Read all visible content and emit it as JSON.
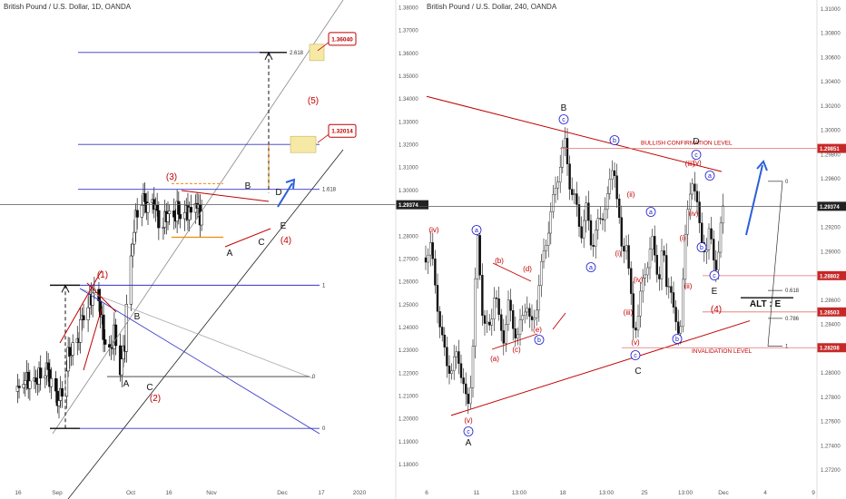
{
  "chart_data": [
    {
      "type": "candlestick",
      "title": "British Pound / U.S. Dollar, 1D, OANDA",
      "ylim": [
        1.175,
        1.385
      ],
      "y_ticks": [
        "1.38000",
        "1.37000",
        "1.36000",
        "1.35000",
        "1.34000",
        "1.33000",
        "1.32000",
        "1.31000",
        "1.30000",
        "1.28000",
        "1.27000",
        "1.26000",
        "1.25000",
        "1.24000",
        "1.23000",
        "1.22000",
        "1.21000",
        "1.20000",
        "1.19000",
        "1.18000"
      ],
      "x_ticks": [
        "16",
        "Sep",
        "Oct",
        "16",
        "Nov",
        "Dec",
        "17",
        "2020"
      ],
      "current_price": "1.29374",
      "price_callouts": [
        {
          "label": "1.36040",
          "value": 1.3604
        },
        {
          "label": "1.32014",
          "value": 1.32014
        }
      ],
      "fib_levels": [
        {
          "label": "2.618",
          "value": 1.3604
        },
        {
          "label": "1.618",
          "value": 1.3005
        },
        {
          "label": "1",
          "value": 1.2585
        },
        {
          "label": "0",
          "value": 1.2185
        },
        {
          "label": "0",
          "value": 1.1958
        }
      ],
      "wave_labels": [
        {
          "text": "(1)",
          "color": "red",
          "date": "Sep 23",
          "price": 1.263
        },
        {
          "text": "(2)",
          "color": "red",
          "date": "Oct 11",
          "price": 1.21
        },
        {
          "text": "(3)",
          "color": "red",
          "date": "Oct 21",
          "price": 1.306
        },
        {
          "text": "(4)",
          "color": "red",
          "date": "Dec 2",
          "price": 1.279
        },
        {
          "text": "(5)",
          "color": "red",
          "date": "Dec 8",
          "price": 1.341
        },
        {
          "text": "A",
          "color": "black",
          "date": "Oct 1",
          "price": 1.2165
        },
        {
          "text": "B",
          "color": "black",
          "date": "Oct 5",
          "price": 1.239
        },
        {
          "text": "C",
          "color": "black",
          "date": "Oct 9",
          "price": 1.21
        },
        {
          "text": "A",
          "color": "black",
          "date": "Nov 15",
          "price": 1.275
        },
        {
          "text": "B",
          "color": "black",
          "date": "Nov 24",
          "price": 1.302
        },
        {
          "text": "C",
          "color": "black",
          "date": "Nov 27",
          "price": 1.279
        },
        {
          "text": "D",
          "color": "black",
          "date": "Dec 2",
          "price": 1.3
        },
        {
          "text": "E",
          "color": "black",
          "date": "Nov 29",
          "price": 1.285
        }
      ],
      "candles": []
    },
    {
      "type": "candlestick",
      "title": "British Pound / U.S. Dollar, 240, OANDA",
      "ylim": [
        1.268,
        1.312
      ],
      "y_ticks": [
        "1.31000",
        "1.30800",
        "1.30600",
        "1.30400",
        "1.30200",
        "1.30000",
        "1.29800",
        "1.29600",
        "1.29200",
        "1.29000",
        "1.28600",
        "1.28400",
        "1.28000",
        "1.27800",
        "1.27600",
        "1.27400",
        "1.27200"
      ],
      "x_ticks": [
        "6",
        "11",
        "13:00",
        "18",
        "13:00",
        "25",
        "13:00",
        "Dec",
        "4",
        "9"
      ],
      "current_price": "1.29374",
      "price_callouts": [
        {
          "label": "1.29851",
          "value": 1.29851
        },
        {
          "label": "1.28802",
          "value": 1.28802
        },
        {
          "label": "1.28503",
          "value": 1.28503
        },
        {
          "label": "1.28208",
          "value": 1.28208
        }
      ],
      "levels": [
        {
          "label": "BULLISH CONFIRMATION LEVEL",
          "value": 1.29851
        },
        {
          "label": "INVALIDATION LEVEL",
          "value": 1.28208
        }
      ],
      "fib_levels": [
        {
          "label": "0",
          "value": 1.2958
        },
        {
          "label": "0.618",
          "value": 1.2868
        },
        {
          "label": "0.786",
          "value": 1.2845
        },
        {
          "label": "1",
          "value": 1.2822
        }
      ],
      "alt_label": "ALT : E",
      "wave_labels": [
        {
          "text": "(iv)",
          "color": "red",
          "date": "Nov 6",
          "price": 1.2914
        },
        {
          "text": "(v)",
          "color": "red",
          "date": "Nov 10",
          "price": 1.2755
        },
        {
          "text": "c",
          "color": "circle",
          "date": "Nov 10",
          "price": 1.2743
        },
        {
          "text": "A",
          "color": "black",
          "date": "Nov 10",
          "price": 1.2736
        },
        {
          "text": "a",
          "color": "circle",
          "date": "Nov 11",
          "price": 1.291
        },
        {
          "text": "(a)",
          "color": "red",
          "date": "Nov 12",
          "price": 1.2856
        },
        {
          "text": "(b)",
          "color": "red",
          "date": "Nov 13",
          "price": 1.2888
        },
        {
          "text": "(c)",
          "color": "red",
          "date": "Nov 14",
          "price": 1.2825
        },
        {
          "text": "(d)",
          "color": "red",
          "date": "Nov 16",
          "price": 1.2876
        },
        {
          "text": "(e)",
          "color": "red",
          "date": "Nov 17",
          "price": 1.284
        },
        {
          "text": "b",
          "color": "circle",
          "date": "Nov 17",
          "price": 1.2827
        },
        {
          "text": "B",
          "color": "black",
          "date": "Nov 18",
          "price": 1.3003
        },
        {
          "text": "c",
          "color": "circle",
          "date": "Nov 18",
          "price": 1.2989
        },
        {
          "text": "b",
          "color": "circle",
          "date": "Nov 21",
          "price": 1.2963
        },
        {
          "text": "a",
          "color": "circle",
          "date": "Nov 20",
          "price": 1.2878
        },
        {
          "text": "(i)",
          "color": "red",
          "date": "Nov 21",
          "price": 1.2895
        },
        {
          "text": "(ii)",
          "color": "red",
          "date": "Nov 22",
          "price": 1.293
        },
        {
          "text": "(iii)",
          "color": "red",
          "date": "Nov 23",
          "price": 1.2836
        },
        {
          "text": "(iv)",
          "color": "red",
          "date": "Nov 23",
          "price": 1.2866
        },
        {
          "text": "(v)",
          "color": "red",
          "date": "Nov 24",
          "price": 1.2813
        },
        {
          "text": "c",
          "color": "circle",
          "date": "Nov 24",
          "price": 1.2801
        },
        {
          "text": "C",
          "color": "black",
          "date": "Nov 24",
          "price": 1.2791
        },
        {
          "text": "a",
          "color": "circle",
          "date": "Nov 25",
          "price": 1.2924
        },
        {
          "text": "b",
          "color": "circle",
          "date": "Nov 26",
          "price": 1.2813
        },
        {
          "text": "(i)",
          "color": "red",
          "date": "Nov 27",
          "price": 1.2906
        },
        {
          "text": "(ii)",
          "color": "red",
          "date": "Nov 27",
          "price": 1.2866
        },
        {
          "text": "(iii)",
          "color": "red",
          "date": "Nov 28",
          "price": 1.2958
        },
        {
          "text": "(iv)",
          "color": "red",
          "date": "Nov 28",
          "price": 1.2923
        },
        {
          "text": "(v)",
          "color": "red",
          "date": "Nov 29",
          "price": 1.2958
        },
        {
          "text": "c",
          "color": "circle",
          "date": "Nov 29",
          "price": 1.2964
        },
        {
          "text": "D",
          "color": "black",
          "date": "Nov 29",
          "price": 1.2977
        },
        {
          "text": "a",
          "color": "circle",
          "date": "Nov 29",
          "price": 1.2893
        },
        {
          "text": "b",
          "color": "circle",
          "date": "Nov 30",
          "price": 1.2933
        },
        {
          "text": "c",
          "color": "circle",
          "date": "Nov 30",
          "price": 1.2874
        },
        {
          "text": "E",
          "color": "black",
          "date": "Nov 30",
          "price": 1.2862
        },
        {
          "text": "(4)",
          "color": "red",
          "date": "Nov 30",
          "price": 1.2845
        }
      ],
      "candles": []
    }
  ],
  "colors": {
    "wave_red": "#c00000",
    "wave_blue": "#1a1acc",
    "fib_blue": "#3333cc",
    "arrow_blue": "#2b5fd9",
    "orange": "#f08c00",
    "price_line": "#555555"
  }
}
